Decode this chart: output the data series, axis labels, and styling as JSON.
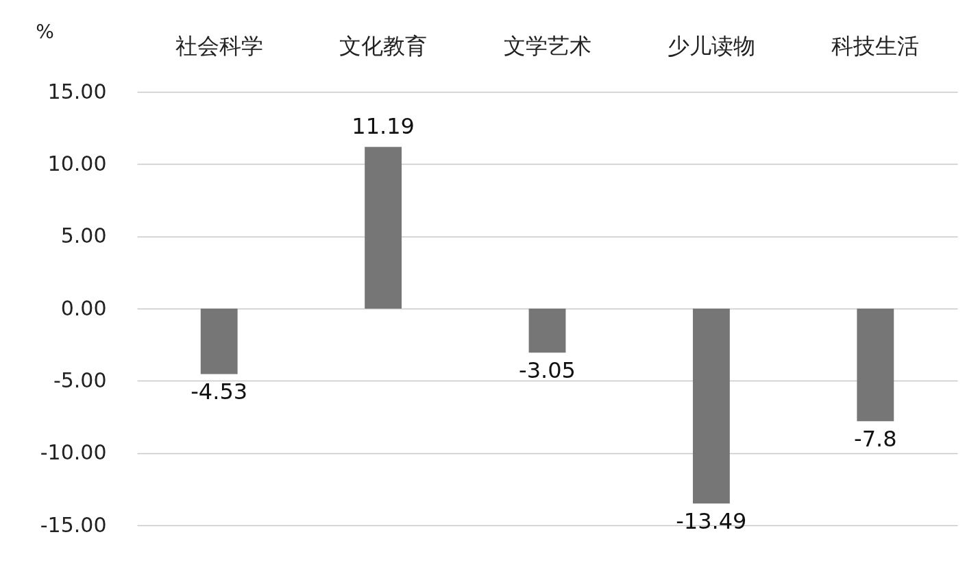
{
  "chart_data": {
    "type": "bar",
    "ylabel": "%",
    "categories": [
      "社会科学",
      "文化教育",
      "文学艺术",
      "少儿读物",
      "科技生活"
    ],
    "values": [
      -4.53,
      11.19,
      -3.05,
      -13.49,
      -7.8
    ],
    "color": "#767676",
    "ylim": [
      -15,
      15
    ],
    "yticks": [
      {
        "value": -15,
        "label": "-15.00"
      },
      {
        "value": -10,
        "label": "-10.00"
      },
      {
        "value": -5,
        "label": "-5.00"
      },
      {
        "value": 0,
        "label": "0.00"
      },
      {
        "value": 5,
        "label": "5.00"
      },
      {
        "value": 10,
        "label": "10.00"
      },
      {
        "value": 15,
        "label": "15.00"
      }
    ],
    "grid": "y",
    "data_labels": true
  }
}
